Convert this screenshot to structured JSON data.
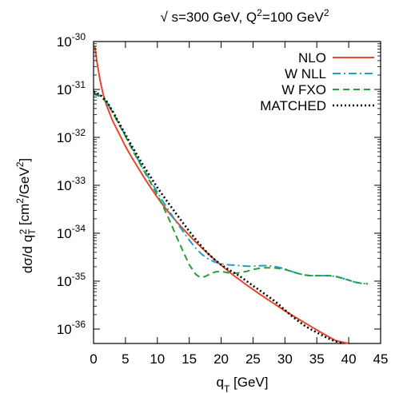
{
  "chart_data": {
    "type": "line",
    "title": "√ s=300 GeV, Q²=100 GeV²",
    "xlabel": "q_T [GeV]",
    "ylabel": "dσ/d q_T² [cm²/GeV²]",
    "xlim": [
      0,
      45
    ],
    "ylim": [
      5e-37,
      1e-30
    ],
    "yscale": "log",
    "xticks": [
      0,
      5,
      10,
      15,
      20,
      25,
      30,
      35,
      40,
      45
    ],
    "yticks": [
      1e-36,
      1e-35,
      1e-34,
      1e-33,
      1e-32,
      1e-31,
      1e-30
    ],
    "ytick_labels": [
      {
        "base": "10",
        "exp": "-36"
      },
      {
        "base": "10",
        "exp": "-35"
      },
      {
        "base": "10",
        "exp": "-34"
      },
      {
        "base": "10",
        "exp": "-33"
      },
      {
        "base": "10",
        "exp": "-32"
      },
      {
        "base": "10",
        "exp": "-31"
      },
      {
        "base": "10",
        "exp": "-30"
      }
    ],
    "legend_position": "top-right",
    "grid": false,
    "series": [
      {
        "name": "NLO",
        "color": "#e8452c",
        "style": "solid",
        "x": [
          0.2,
          0.5,
          1,
          1.5,
          2,
          3,
          4,
          5,
          6,
          7,
          8,
          9,
          10,
          11,
          12,
          13,
          14,
          15,
          16,
          17,
          18,
          19,
          20,
          22,
          24,
          26,
          28,
          30,
          32,
          34,
          36,
          38,
          40
        ],
        "y": [
          8e-31,
          4e-31,
          1.6e-31,
          8e-32,
          4.8e-32,
          2.2e-32,
          1.2e-32,
          6.5e-33,
          3.8e-33,
          2.3e-33,
          1.4e-33,
          8.8e-34,
          5.6e-34,
          3.7e-34,
          2.5e-34,
          1.75e-34,
          1.25e-34,
          9e-35,
          6.6e-35,
          4.9e-35,
          3.7e-35,
          2.8e-35,
          2.15e-35,
          1.3e-35,
          8.3e-36,
          5.4e-36,
          3.6e-36,
          2.4e-36,
          1.65e-36,
          1.15e-36,
          8e-37,
          5.7e-37,
          4.1e-37
        ]
      },
      {
        "name": "W NLL",
        "color": "#1aa3c8",
        "style": "dashdot",
        "x": [
          0,
          1,
          2,
          3,
          4,
          5,
          6,
          7,
          8,
          9,
          10,
          11,
          12,
          13,
          14,
          15,
          16,
          17,
          18,
          19,
          20,
          21,
          22,
          23,
          24,
          25,
          26,
          27,
          28,
          29,
          30,
          31,
          32,
          33,
          34,
          35,
          36,
          37,
          38,
          39,
          40,
          41,
          42,
          43
        ],
        "y": [
          8.5e-32,
          7.5e-32,
          5.6e-32,
          3.4e-32,
          1.9e-32,
          1.08e-32,
          6e-33,
          3.4e-33,
          2e-33,
          1.2e-33,
          7.2e-34,
          4.3e-34,
          2.7e-34,
          1.7e-34,
          1.1e-34,
          7.2e-35,
          4.9e-35,
          3.6e-35,
          2.9e-35,
          2.5e-35,
          2.3e-35,
          2.2e-35,
          2.15e-35,
          2.1e-35,
          2.05e-35,
          2.05e-35,
          2.1e-35,
          2.1e-35,
          2.05e-35,
          1.95e-35,
          1.8e-35,
          1.6e-35,
          1.45e-35,
          1.35e-35,
          1.3e-35,
          1.3e-35,
          1.3e-35,
          1.3e-35,
          1.25e-35,
          1.15e-35,
          1.05e-35,
          9.5e-36,
          9e-36,
          8.8e-36
        ]
      },
      {
        "name": "W FXO",
        "color": "#2a9a3a",
        "style": "dashed",
        "x": [
          0,
          1,
          2,
          3,
          4,
          5,
          6,
          7,
          8,
          9,
          10,
          11,
          12,
          13,
          14,
          15,
          16,
          16.5,
          17,
          17.5,
          18,
          19,
          20,
          21,
          22,
          23,
          24,
          25,
          26,
          27,
          28,
          29,
          30,
          31,
          32,
          33,
          34,
          35,
          36,
          37,
          38,
          39,
          40,
          41,
          42,
          43
        ],
        "y": [
          8e-32,
          7.2e-32,
          5.5e-32,
          3.3e-32,
          1.85e-32,
          1.05e-32,
          5.8e-33,
          3.3e-33,
          1.9e-33,
          1.1e-33,
          6.3e-34,
          3.4e-34,
          1.75e-34,
          8.5e-35,
          4.3e-35,
          2.2e-35,
          1.4e-35,
          1.25e-35,
          1.2e-35,
          1.25e-35,
          1.35e-35,
          1.55e-35,
          1.6e-35,
          1.5e-35,
          1.45e-35,
          1.5e-35,
          1.6e-35,
          1.75e-35,
          1.85e-35,
          1.9e-35,
          1.9e-35,
          1.85e-35,
          1.75e-35,
          1.6e-35,
          1.45e-35,
          1.35e-35,
          1.3e-35,
          1.3e-35,
          1.3e-35,
          1.3e-35,
          1.25e-35,
          1.15e-35,
          1.05e-35,
          9.5e-36,
          9e-36,
          8.8e-36
        ]
      },
      {
        "name": "MATCHED",
        "color": "#000000",
        "style": "dotted",
        "x": [
          0,
          1,
          2,
          3,
          4,
          5,
          6,
          7,
          8,
          9,
          10,
          11,
          12,
          13,
          14,
          15,
          16,
          17,
          18,
          19,
          20,
          21,
          22,
          23,
          24,
          25,
          26,
          27,
          28,
          29,
          30,
          31,
          32,
          33,
          34,
          35,
          36,
          37,
          38,
          39
        ],
        "y": [
          9e-32,
          7.8e-32,
          5.8e-32,
          3.5e-32,
          2e-32,
          1.15e-32,
          6.6e-33,
          3.9e-33,
          2.35e-33,
          1.45e-33,
          9e-34,
          5.8e-34,
          3.8e-34,
          2.5e-34,
          1.65e-34,
          1.1e-34,
          7.5e-35,
          5.2e-35,
          3.7e-35,
          2.8e-35,
          2.2e-35,
          1.8e-35,
          1.5e-35,
          1.25e-35,
          1e-35,
          8e-36,
          6.5e-36,
          5.2e-36,
          4.2e-36,
          3.3e-36,
          2.5e-36,
          1.9e-36,
          1.5e-36,
          1.2e-36,
          1e-36,
          8.5e-37,
          7.2e-37,
          6.2e-37,
          5.5e-37,
          5e-37
        ]
      }
    ]
  }
}
